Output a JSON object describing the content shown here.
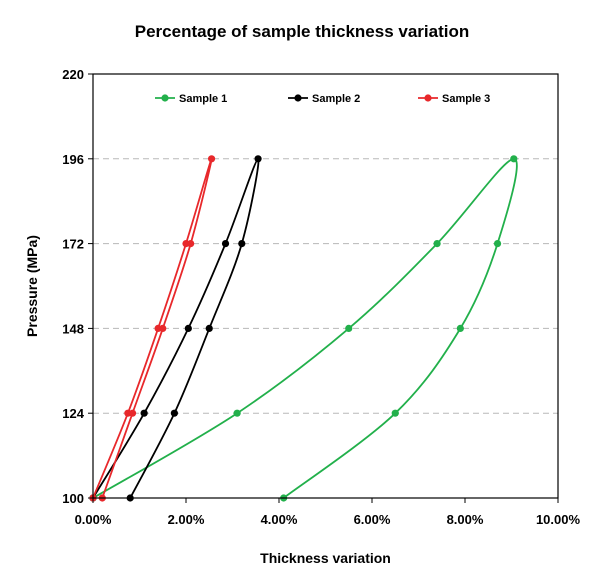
{
  "chart_data": {
    "type": "line",
    "title": "Percentage of sample thickness variation",
    "xlabel": "Thickness variation",
    "ylabel": "Pressure (MPa)",
    "xlim": [
      0,
      10
    ],
    "ylim": [
      100,
      220
    ],
    "x_ticks": [
      0,
      2,
      4,
      6,
      8,
      10
    ],
    "x_tick_labels": [
      "0.00%",
      "2.00%",
      "4.00%",
      "6.00%",
      "8.00%",
      "10.00%"
    ],
    "y_ticks": [
      100,
      124,
      148,
      172,
      196,
      220
    ],
    "y_tick_labels": [
      "100",
      "124",
      "148",
      "172",
      "196",
      "220"
    ],
    "gridlines_y": [
      124,
      148,
      172,
      196
    ],
    "grid_style": "dashed horizontal",
    "legend_position": "top",
    "series": [
      {
        "name": "Sample 1",
        "color": "#22b04b",
        "x": [
          0.0,
          3.1,
          5.5,
          7.4,
          9.05,
          8.7,
          7.9,
          6.5,
          4.1
        ],
        "y": [
          100,
          124,
          148,
          172,
          196,
          172,
          148,
          124,
          100
        ]
      },
      {
        "name": "Sample 2",
        "color": "#000000",
        "x": [
          0.0,
          1.1,
          2.05,
          2.85,
          3.55,
          3.2,
          2.5,
          1.75,
          0.8
        ],
        "y": [
          100,
          124,
          148,
          172,
          196,
          172,
          148,
          124,
          100
        ]
      },
      {
        "name": "Sample 3",
        "color": "#e8282b",
        "x": [
          0.0,
          0.75,
          1.4,
          2.0,
          2.55,
          2.1,
          1.5,
          0.85,
          0.2
        ],
        "y": [
          100,
          124,
          148,
          172,
          196,
          172,
          148,
          124,
          100
        ]
      }
    ]
  }
}
